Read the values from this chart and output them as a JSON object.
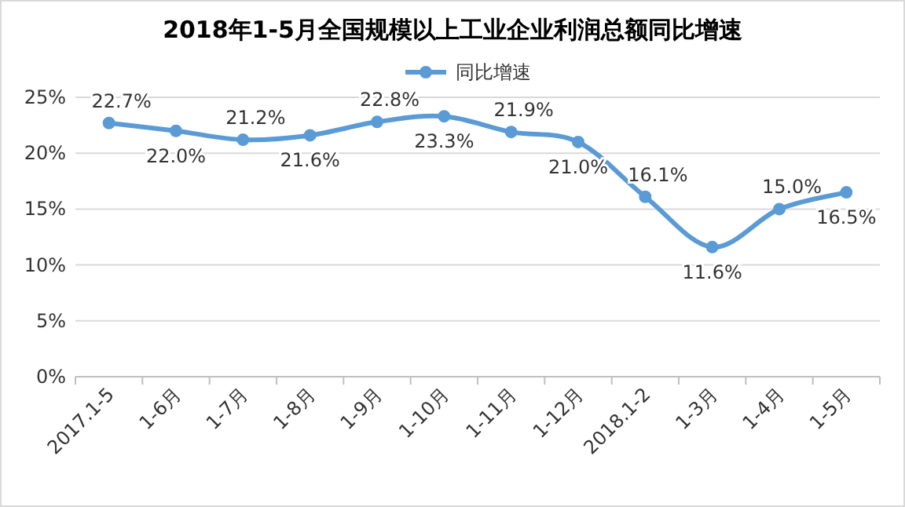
{
  "chart_data": {
    "type": "line",
    "title": "2018年1-5月全国规模以上工业企业利润总额同比增速",
    "categories": [
      "2017.1-5",
      "1-6月",
      "1-7月",
      "1-8月",
      "1-9月",
      "1-10月",
      "1-11月",
      "1-12月",
      "2018.1-2",
      "1-3月",
      "1-4月",
      "1-5月"
    ],
    "series": [
      {
        "name": "同比增速",
        "color": "#5b9bd5",
        "values": [
          22.7,
          22.0,
          21.2,
          21.6,
          22.8,
          23.3,
          21.9,
          21.0,
          16.1,
          11.6,
          15.0,
          16.5
        ]
      }
    ],
    "ylim": [
      0,
      25
    ],
    "yticks": [
      {
        "value": 0,
        "label": "0%"
      },
      {
        "value": 5,
        "label": "5%"
      },
      {
        "value": 10,
        "label": "10%"
      },
      {
        "value": 15,
        "label": "15%"
      },
      {
        "value": 20,
        "label": "20%"
      },
      {
        "value": 25,
        "label": "25%"
      }
    ],
    "value_labels": [
      "22.7%",
      "22.0%",
      "21.2%",
      "21.6%",
      "22.8%",
      "23.3%",
      "21.9%",
      "21.0%",
      "16.1%",
      "11.6%",
      "15.0%",
      "16.5%"
    ],
    "grid": "y",
    "legend": "top",
    "marker": "circle",
    "line_style": "solid"
  }
}
